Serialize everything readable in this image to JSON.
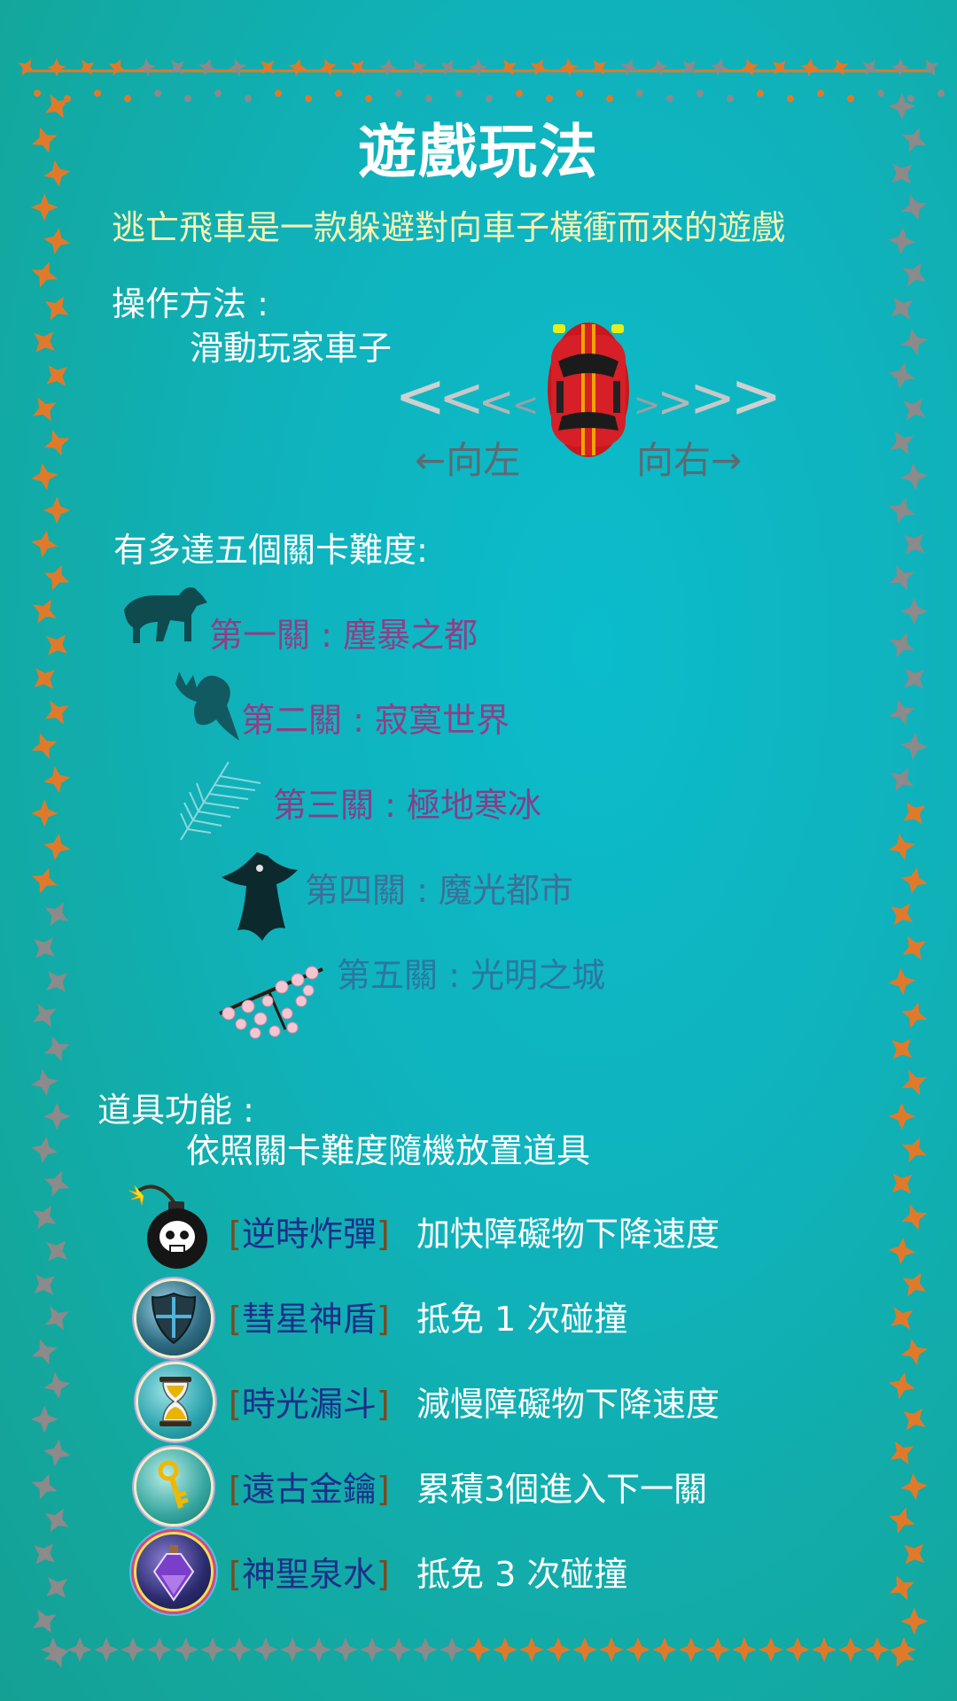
{
  "title": "遊戲玩法",
  "intro": "逃亡飛車是一款躲避對向車子橫衝而來的遊戲",
  "controls": {
    "heading": "操作方法 :",
    "desc": "滑動玩家車子",
    "left_label": "←向左",
    "right_label": "向右→"
  },
  "levels": {
    "heading": "有多達五個關卡難度:",
    "items": [
      {
        "num": "第一關",
        "name": "塵暴之都",
        "icon": "wolf-icon"
      },
      {
        "num": "第二關",
        "name": "寂寞世界",
        "icon": "ghost-icon"
      },
      {
        "num": "第三關",
        "name": "極地寒冰",
        "icon": "ice-feather-icon"
      },
      {
        "num": "第四關",
        "name": "魔光都市",
        "icon": "bat-icon"
      },
      {
        "num": "第五關",
        "name": "光明之城",
        "icon": "cherry-blossom-icon"
      }
    ]
  },
  "items_section": {
    "heading": "道具功能 :",
    "desc": "依照關卡難度隨機放置道具",
    "items": [
      {
        "name": "逆時炸彈",
        "effect": "加快障礙物下降速度",
        "icon": "bomb-icon"
      },
      {
        "name": "彗星神盾",
        "effect": "抵免 1 次碰撞",
        "icon": "shield-icon"
      },
      {
        "name": "時光漏斗",
        "effect": "減慢障礙物下降速度",
        "icon": "hourglass-icon"
      },
      {
        "name": "遠古金鑰",
        "effect": "累積3個進入下一關",
        "icon": "golden-key-icon"
      },
      {
        "name": "神聖泉水",
        "effect": "抵免 3 次碰撞",
        "icon": "holy-water-icon"
      }
    ]
  },
  "colors": {
    "background": "#0fb3bd",
    "intro": "#f6f3b4",
    "level_text": [
      "#8e3f86",
      "#8e3f86",
      "#82408a",
      "#3d6f98",
      "#2a77a2"
    ],
    "item_name": "#1d2f8a",
    "bracket": "#7a4a1e",
    "frame_orange": "#e07a2a",
    "frame_gray": "#8c8a8a"
  }
}
